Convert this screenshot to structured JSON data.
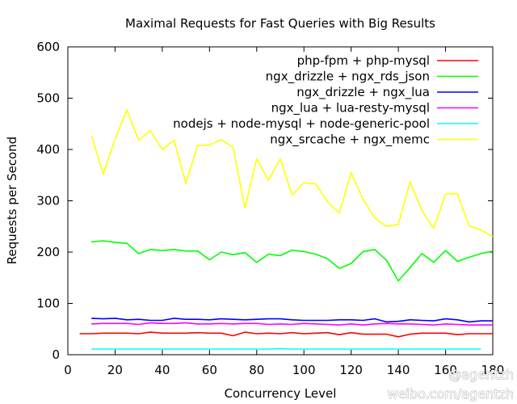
{
  "chart_data": {
    "type": "line",
    "title": "Maximal Requests for Fast Queries with Big Results",
    "xlabel": "Concurrency Level",
    "ylabel": "Requests per Second",
    "xlim": [
      0,
      180
    ],
    "ylim": [
      0,
      600
    ],
    "xticks": [
      0,
      20,
      40,
      60,
      80,
      100,
      120,
      140,
      160,
      180
    ],
    "yticks": [
      0,
      100,
      200,
      300,
      400,
      500,
      600
    ],
    "grid": false,
    "legend_position": "top-right",
    "series": [
      {
        "name": "php-fpm + php-mysql",
        "color": "#ff0000",
        "points": [
          [
            5,
            41
          ],
          [
            10,
            41
          ],
          [
            15,
            42
          ],
          [
            20,
            42
          ],
          [
            25,
            42
          ],
          [
            30,
            41
          ],
          [
            35,
            44
          ],
          [
            40,
            42
          ],
          [
            45,
            42
          ],
          [
            50,
            42
          ],
          [
            55,
            43
          ],
          [
            60,
            42
          ],
          [
            65,
            42
          ],
          [
            70,
            37
          ],
          [
            75,
            44
          ],
          [
            80,
            41
          ],
          [
            85,
            42
          ],
          [
            90,
            41
          ],
          [
            95,
            43
          ],
          [
            100,
            41
          ],
          [
            105,
            42
          ],
          [
            110,
            43
          ],
          [
            115,
            39
          ],
          [
            120,
            43
          ],
          [
            125,
            40
          ],
          [
            130,
            40
          ],
          [
            135,
            40
          ],
          [
            140,
            35
          ],
          [
            145,
            40
          ],
          [
            150,
            42
          ],
          [
            155,
            42
          ],
          [
            160,
            42
          ],
          [
            165,
            39
          ],
          [
            170,
            41
          ],
          [
            175,
            41
          ],
          [
            180,
            41
          ]
        ]
      },
      {
        "name": "ngx_drizzle + ngx_rds_json",
        "color": "#00ff00",
        "points": [
          [
            10,
            220
          ],
          [
            15,
            222
          ],
          [
            20,
            219
          ],
          [
            25,
            217
          ],
          [
            30,
            197
          ],
          [
            35,
            205
          ],
          [
            40,
            203
          ],
          [
            45,
            205
          ],
          [
            50,
            202
          ],
          [
            55,
            202
          ],
          [
            60,
            185
          ],
          [
            65,
            200
          ],
          [
            70,
            195
          ],
          [
            75,
            199
          ],
          [
            80,
            180
          ],
          [
            85,
            196
          ],
          [
            90,
            193
          ],
          [
            95,
            204
          ],
          [
            100,
            201
          ],
          [
            105,
            196
          ],
          [
            110,
            187
          ],
          [
            115,
            168
          ],
          [
            120,
            178
          ],
          [
            125,
            201
          ],
          [
            130,
            205
          ],
          [
            135,
            184
          ],
          [
            140,
            144
          ],
          [
            145,
            170
          ],
          [
            150,
            197
          ],
          [
            155,
            180
          ],
          [
            160,
            203
          ],
          [
            165,
            182
          ],
          [
            170,
            190
          ],
          [
            175,
            197
          ],
          [
            180,
            202
          ]
        ]
      },
      {
        "name": "ngx_drizzle + ngx_lua",
        "color": "#0000ff",
        "points": [
          [
            10,
            71
          ],
          [
            15,
            70
          ],
          [
            20,
            71
          ],
          [
            25,
            68
          ],
          [
            30,
            69
          ],
          [
            35,
            67
          ],
          [
            40,
            67
          ],
          [
            45,
            71
          ],
          [
            50,
            69
          ],
          [
            55,
            69
          ],
          [
            60,
            68
          ],
          [
            65,
            70
          ],
          [
            70,
            69
          ],
          [
            75,
            68
          ],
          [
            80,
            69
          ],
          [
            85,
            70
          ],
          [
            90,
            70
          ],
          [
            95,
            68
          ],
          [
            100,
            67
          ],
          [
            105,
            67
          ],
          [
            110,
            67
          ],
          [
            115,
            68
          ],
          [
            120,
            68
          ],
          [
            125,
            67
          ],
          [
            130,
            70
          ],
          [
            135,
            64
          ],
          [
            140,
            65
          ],
          [
            145,
            68
          ],
          [
            150,
            67
          ],
          [
            155,
            66
          ],
          [
            160,
            70
          ],
          [
            165,
            68
          ],
          [
            170,
            64
          ],
          [
            175,
            66
          ],
          [
            180,
            66
          ]
        ]
      },
      {
        "name": "ngx_lua + lua-resty-mysql",
        "color": "#ff00ff",
        "points": [
          [
            10,
            60
          ],
          [
            15,
            61
          ],
          [
            20,
            61
          ],
          [
            25,
            61
          ],
          [
            30,
            59
          ],
          [
            35,
            62
          ],
          [
            40,
            61
          ],
          [
            45,
            61
          ],
          [
            50,
            62
          ],
          [
            55,
            60
          ],
          [
            60,
            60
          ],
          [
            65,
            61
          ],
          [
            70,
            60
          ],
          [
            75,
            61
          ],
          [
            80,
            61
          ],
          [
            85,
            59
          ],
          [
            90,
            60
          ],
          [
            95,
            59
          ],
          [
            100,
            61
          ],
          [
            105,
            60
          ],
          [
            110,
            59
          ],
          [
            115,
            58
          ],
          [
            120,
            60
          ],
          [
            125,
            58
          ],
          [
            130,
            60
          ],
          [
            135,
            61
          ],
          [
            140,
            60
          ],
          [
            145,
            60
          ],
          [
            150,
            59
          ],
          [
            155,
            58
          ],
          [
            160,
            60
          ],
          [
            165,
            59
          ],
          [
            170,
            58
          ],
          [
            175,
            58
          ],
          [
            180,
            58
          ]
        ]
      },
      {
        "name": "nodejs + node-mysql + node-generic-pool",
        "color": "#00ffff",
        "points": [
          [
            10,
            11
          ],
          [
            15,
            11
          ],
          [
            20,
            11
          ],
          [
            25,
            11
          ],
          [
            30,
            11
          ],
          [
            35,
            11
          ],
          [
            40,
            11
          ],
          [
            45,
            11
          ],
          [
            50,
            11
          ],
          [
            55,
            11
          ],
          [
            60,
            11
          ],
          [
            65,
            11
          ],
          [
            70,
            11
          ],
          [
            75,
            11
          ],
          [
            80,
            11
          ],
          [
            85,
            11
          ],
          [
            90,
            12
          ],
          [
            95,
            11
          ],
          [
            100,
            11
          ],
          [
            105,
            11
          ],
          [
            110,
            11
          ],
          [
            115,
            11
          ],
          [
            120,
            11
          ],
          [
            125,
            11
          ],
          [
            130,
            11
          ],
          [
            135,
            11
          ],
          [
            140,
            11
          ],
          [
            145,
            11
          ],
          [
            150,
            11
          ],
          [
            155,
            11
          ],
          [
            160,
            11
          ],
          [
            165,
            11
          ],
          [
            170,
            11
          ],
          [
            175,
            11
          ]
        ]
      },
      {
        "name": "ngx_srcache + ngx_memc",
        "color": "#ffff00",
        "points": [
          [
            10,
            427
          ],
          [
            15,
            352
          ],
          [
            20,
            420
          ],
          [
            25,
            477
          ],
          [
            30,
            418
          ],
          [
            35,
            437
          ],
          [
            40,
            400
          ],
          [
            45,
            418
          ],
          [
            50,
            334
          ],
          [
            55,
            408
          ],
          [
            60,
            409
          ],
          [
            65,
            419
          ],
          [
            70,
            404
          ],
          [
            75,
            286
          ],
          [
            80,
            382
          ],
          [
            85,
            340
          ],
          [
            90,
            382
          ],
          [
            95,
            311
          ],
          [
            100,
            335
          ],
          [
            105,
            333
          ],
          [
            110,
            298
          ],
          [
            115,
            276
          ],
          [
            120,
            355
          ],
          [
            125,
            303
          ],
          [
            130,
            267
          ],
          [
            135,
            250
          ],
          [
            140,
            254
          ],
          [
            145,
            337
          ],
          [
            150,
            281
          ],
          [
            155,
            246
          ],
          [
            160,
            313
          ],
          [
            165,
            314
          ],
          [
            170,
            251
          ],
          [
            175,
            243
          ],
          [
            180,
            230
          ]
        ]
      }
    ]
  },
  "watermark": {
    "line1": "@agentzh",
    "line2": "weibo.com/agentzh"
  }
}
